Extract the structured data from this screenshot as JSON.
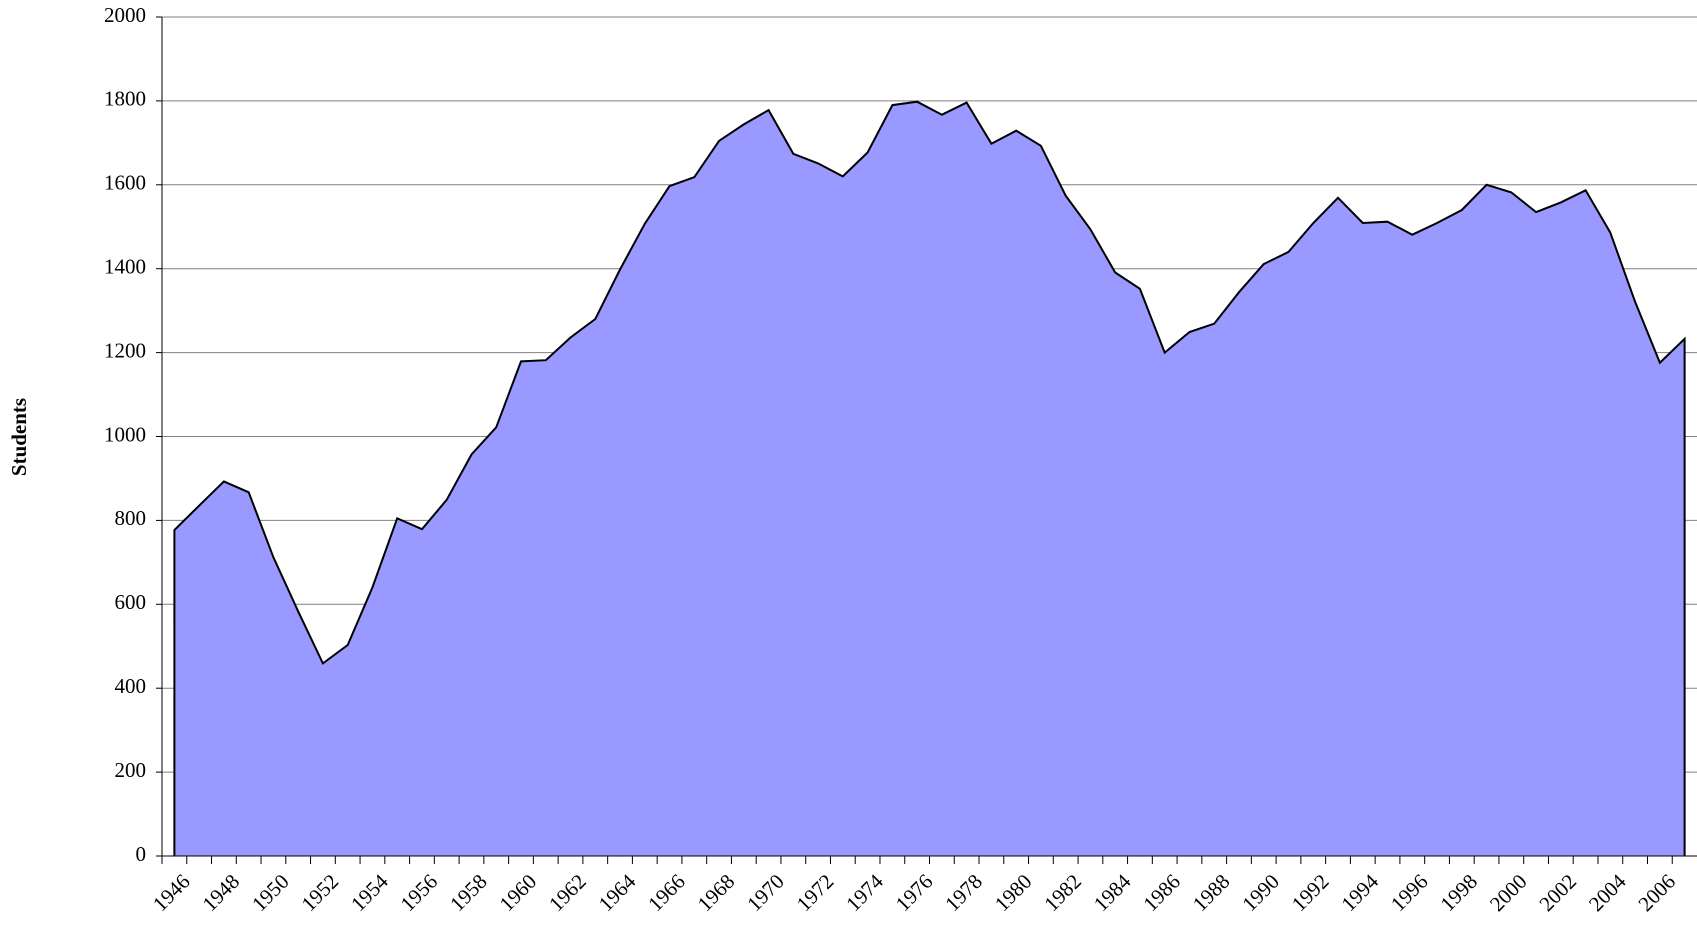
{
  "chart_data": {
    "type": "area",
    "y_label": "Students",
    "categories": [
      "1946",
      null,
      "1948",
      null,
      "1950",
      null,
      "1952",
      null,
      "1954",
      null,
      "1956",
      null,
      "1958",
      null,
      "1960",
      null,
      "1962",
      null,
      "1964",
      null,
      "1966",
      null,
      "1968",
      null,
      "1970",
      null,
      "1972",
      null,
      "1974",
      null,
      "1976",
      null,
      "1978",
      null,
      "1980",
      null,
      "1982",
      null,
      "1984",
      null,
      "1986",
      null,
      "1988",
      null,
      "1990",
      null,
      "1992",
      null,
      "1994",
      null,
      "1996",
      null,
      "1998",
      null,
      "2000",
      null,
      "2002",
      null,
      "2004",
      null,
      "2006",
      null
    ],
    "values": [
      777,
      835,
      893,
      867,
      712,
      583,
      459,
      503,
      640,
      805,
      779,
      849,
      957,
      1022,
      1179,
      1182,
      1236,
      1280,
      1398,
      1507,
      1597,
      1618,
      1705,
      1744,
      1778,
      1674,
      1651,
      1620,
      1677,
      1790,
      1798,
      1767,
      1796,
      1698,
      1729,
      1693,
      1574,
      1494,
      1391,
      1352,
      1200,
      1249,
      1269,
      1344,
      1411,
      1440,
      1509,
      1569,
      1509,
      1512,
      1481,
      1509,
      1540,
      1600,
      1582,
      1535,
      1558,
      1587,
      1486,
      1321,
      1176,
      1233
    ],
    "color": "#9999ff",
    "ylim": [
      0,
      2000
    ],
    "yticks": [
      0,
      200,
      400,
      600,
      800,
      1000,
      1200,
      1400,
      1600,
      1800,
      2000
    ],
    "grid": true
  }
}
